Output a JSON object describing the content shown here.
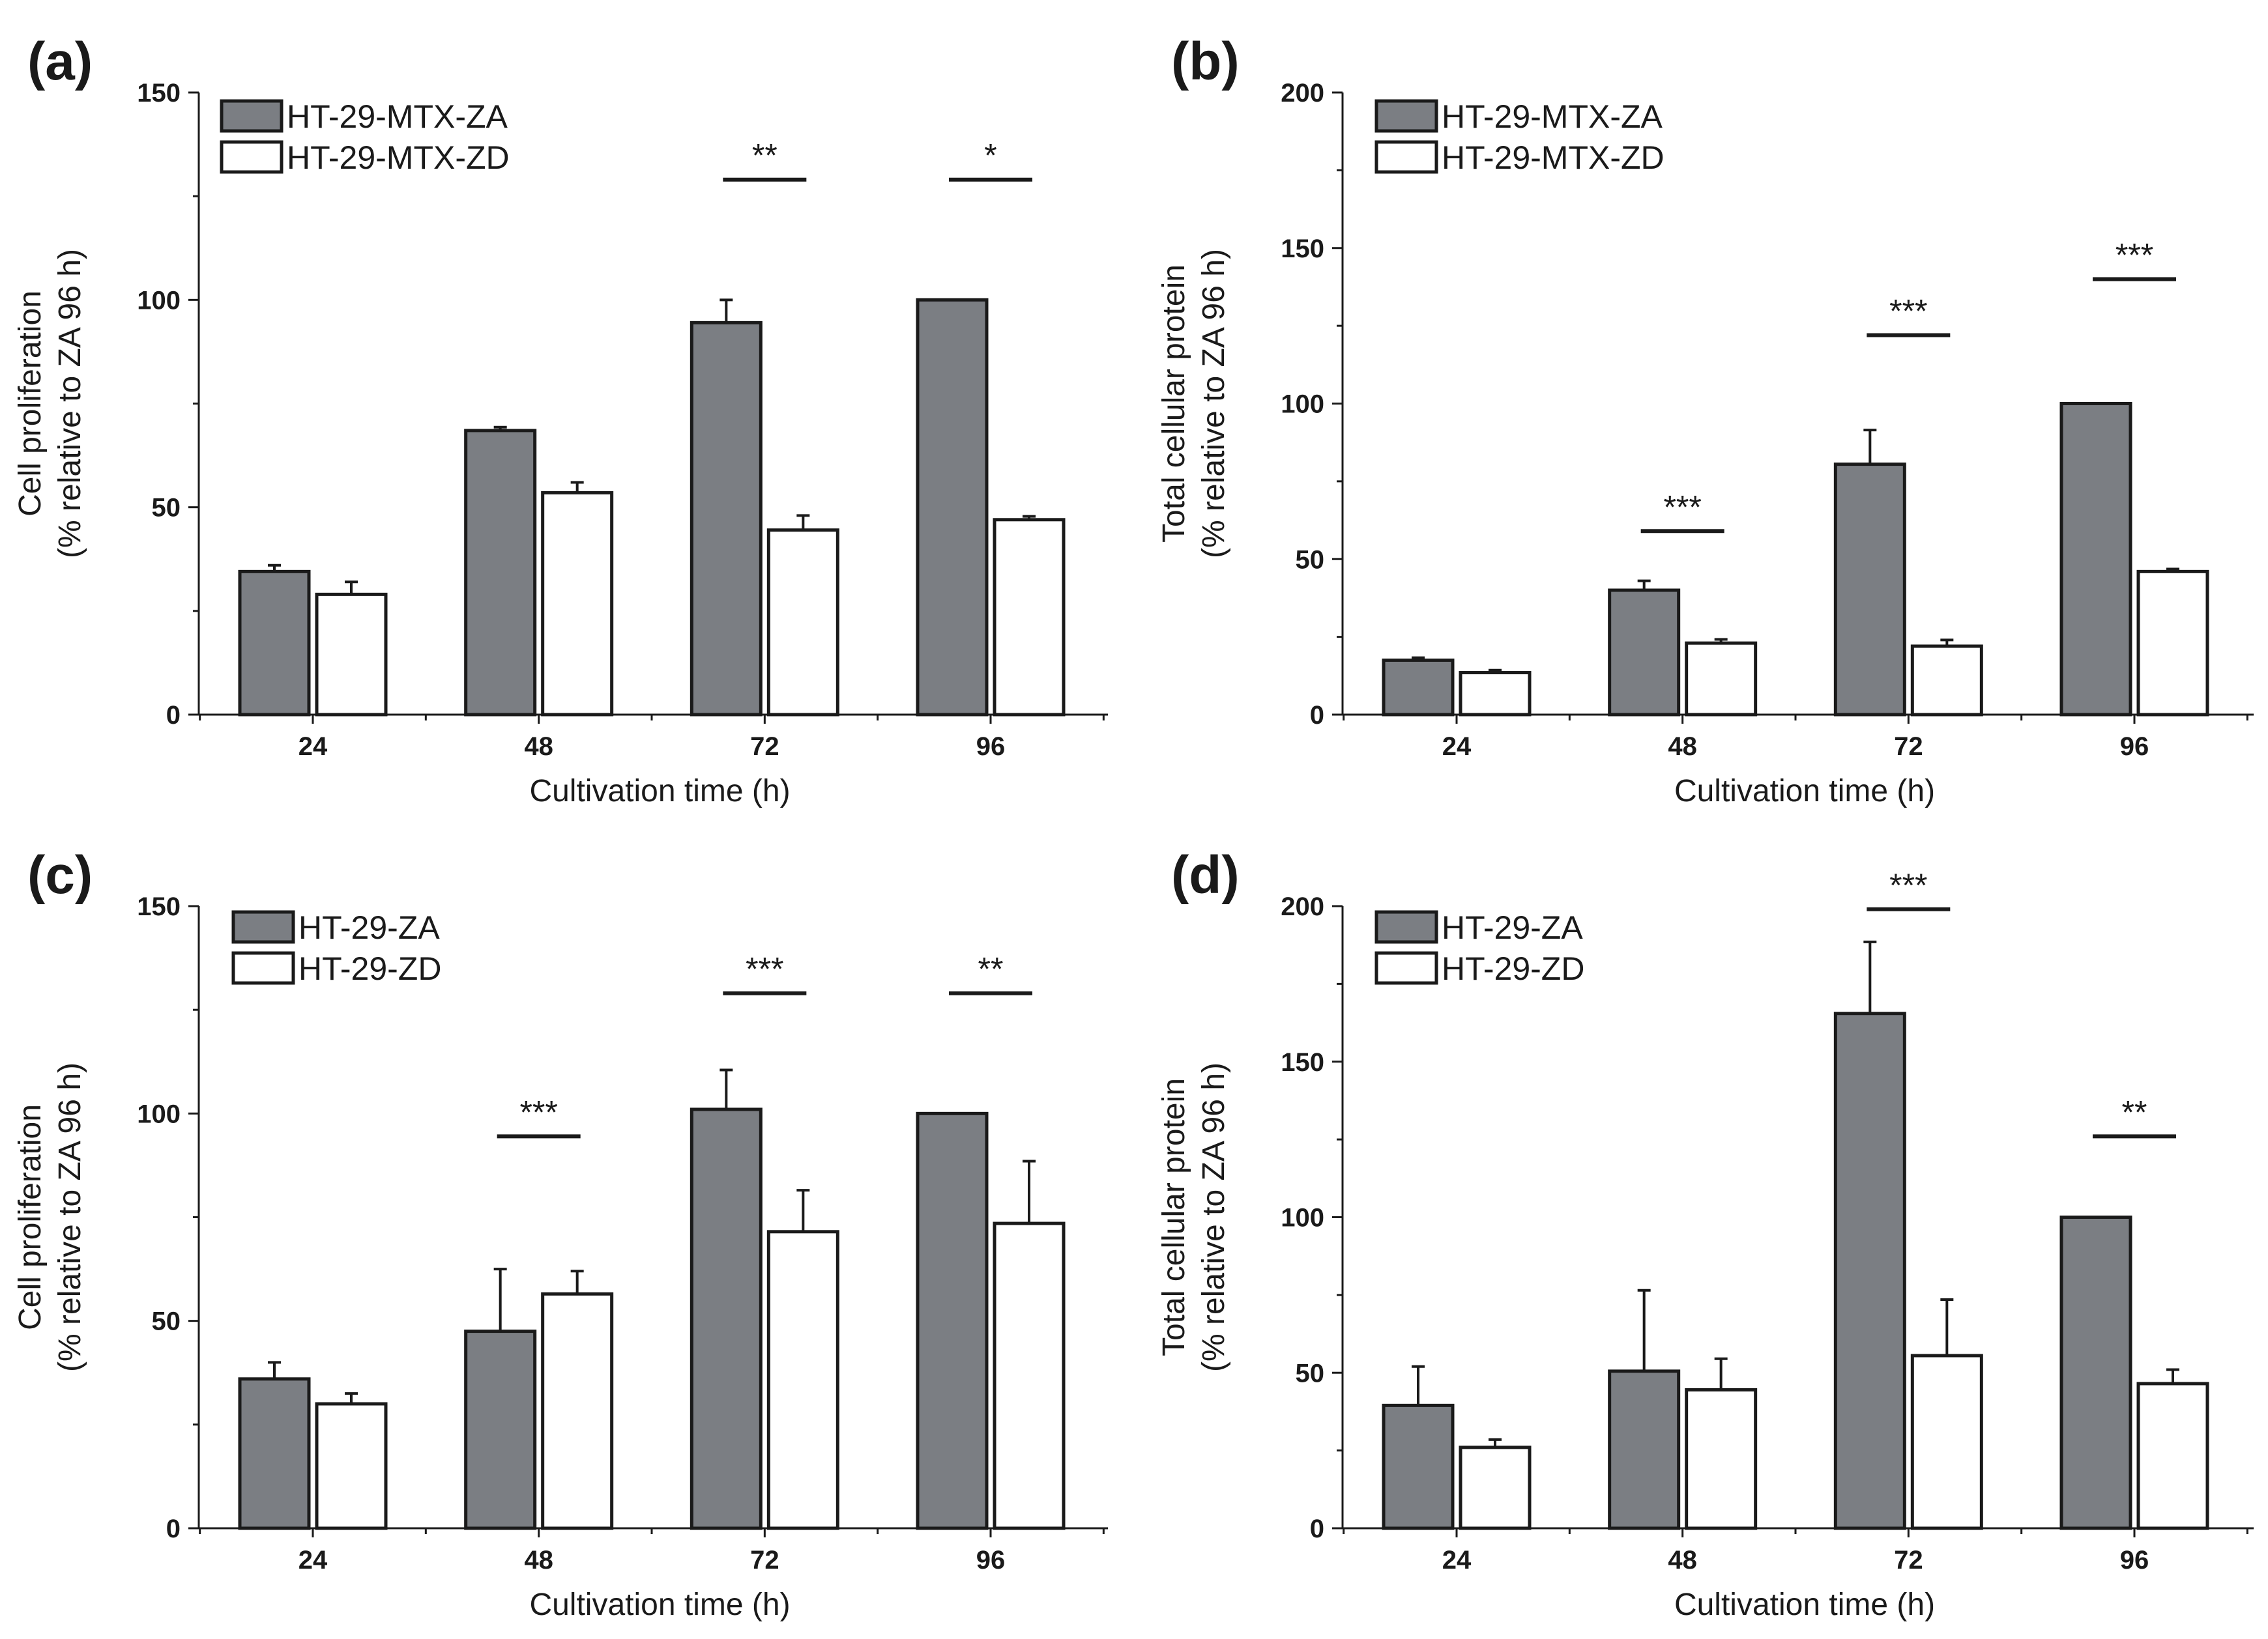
{
  "colors": {
    "series_A": "#7b7e83",
    "series_D": "#ffffff",
    "stroke": "#1a1a1a"
  },
  "chart_data": [
    {
      "panel_label": "(a)",
      "type": "bar",
      "categories": [
        "24",
        "48",
        "72",
        "96"
      ],
      "series": [
        {
          "name": "HT-29-MTX-ZA",
          "values": [
            34.5,
            68.5,
            94.5,
            100
          ],
          "errors": [
            1.5,
            0.8,
            5.5,
            0
          ]
        },
        {
          "name": "HT-29-MTX-ZD",
          "values": [
            29,
            53.5,
            44.5,
            47
          ],
          "errors": [
            3,
            2.5,
            3.5,
            0.8
          ]
        }
      ],
      "xlabel": "Cultivation time (h)",
      "ylabel_line1": "Cell proliferation",
      "ylabel_line2": "(% relative to ZA 96 h)",
      "ylim": [
        0,
        150
      ],
      "yticks": [
        "0",
        "50",
        "100",
        "150"
      ],
      "significance": [
        {
          "category": "72",
          "label": "**",
          "level": 129
        },
        {
          "category": "96",
          "label": "*",
          "level": 129
        }
      ]
    },
    {
      "panel_label": "(b)",
      "type": "bar",
      "categories": [
        "24",
        "48",
        "72",
        "96"
      ],
      "series": [
        {
          "name": "HT-29-MTX-ZA",
          "values": [
            17.5,
            40,
            80.5,
            100
          ],
          "errors": [
            0.8,
            3,
            11,
            0
          ]
        },
        {
          "name": "HT-29-MTX-ZD",
          "values": [
            13.5,
            23,
            22,
            46
          ],
          "errors": [
            0.8,
            1.2,
            2,
            0.8
          ]
        }
      ],
      "xlabel": "Cultivation time (h)",
      "ylabel_line1": "Total cellular protein",
      "ylabel_line2": "(% relative to ZA 96 h)",
      "ylim": [
        0,
        200
      ],
      "yticks": [
        "0",
        "50",
        "100",
        "150",
        "200"
      ],
      "significance": [
        {
          "category": "48",
          "label": "***",
          "level": 59
        },
        {
          "category": "72",
          "label": "***",
          "level": 122
        },
        {
          "category": "96",
          "label": "***",
          "level": 140
        }
      ]
    },
    {
      "panel_label": "(c)",
      "type": "bar",
      "categories": [
        "24",
        "48",
        "72",
        "96"
      ],
      "series": [
        {
          "name": "HT-29-ZA",
          "values": [
            36,
            47.5,
            101,
            100
          ],
          "errors": [
            4,
            15,
            9.5,
            0
          ]
        },
        {
          "name": "HT-29-ZD",
          "values": [
            30,
            56.5,
            71.5,
            73.5
          ],
          "errors": [
            2.5,
            5.5,
            10,
            15
          ]
        }
      ],
      "xlabel": "Cultivation time (h)",
      "ylabel_line1": "Cell proliferation",
      "ylabel_line2": "(% relative to ZA 96 h)",
      "ylim": [
        0,
        150
      ],
      "yticks": [
        "0",
        "50",
        "100",
        "150"
      ],
      "significance": [
        {
          "category": "48",
          "label": "***",
          "level": 94.5
        },
        {
          "category": "72",
          "label": "***",
          "level": 129
        },
        {
          "category": "96",
          "label": "**",
          "level": 129
        }
      ]
    },
    {
      "panel_label": "(d)",
      "type": "bar",
      "categories": [
        "24",
        "48",
        "72",
        "96"
      ],
      "series": [
        {
          "name": "HT-29-ZA",
          "values": [
            39.5,
            50.5,
            165.5,
            100
          ],
          "errors": [
            12.5,
            26,
            23,
            0
          ]
        },
        {
          "name": "HT-29-ZD",
          "values": [
            26,
            44.5,
            55.5,
            46.5
          ],
          "errors": [
            2.5,
            10,
            18,
            4.5
          ]
        }
      ],
      "xlabel": "Cultivation time (h)",
      "ylabel_line1": "Total cellular protein",
      "ylabel_line2": "(% relative to ZA 96 h)",
      "ylim": [
        0,
        200
      ],
      "yticks": [
        "0",
        "50",
        "100",
        "150",
        "200"
      ],
      "significance": [
        {
          "category": "72",
          "label": "***",
          "level": 199
        },
        {
          "category": "96",
          "label": "**",
          "level": 126
        }
      ]
    }
  ]
}
